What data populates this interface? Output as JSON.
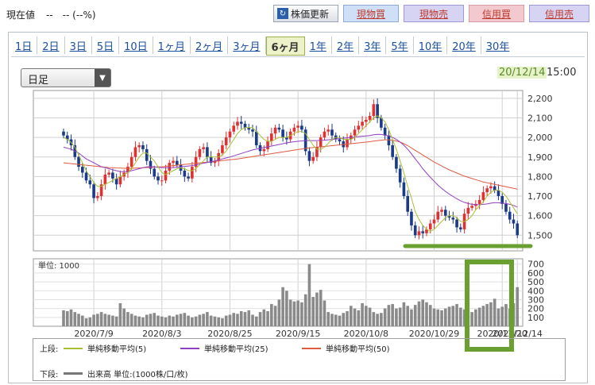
{
  "header": {
    "price_label": "現在値",
    "price_value": "--　-- (--%)",
    "update_label": "株価更新",
    "update_icon": "refresh-icon",
    "buttons": {
      "genbai": "現物買",
      "genuri": "現物売",
      "shinbai": "信用買",
      "shinuri": "信用売"
    }
  },
  "tabs": [
    "1日",
    "2日",
    "3日",
    "5日",
    "10日",
    "1ヶ月",
    "2ヶ月",
    "3ヶ月",
    "6ヶ月",
    "1年",
    "2年",
    "3年",
    "5年",
    "10年",
    "20年",
    "30年"
  ],
  "active_tab": "6ヶ月",
  "select": {
    "value": "日足"
  },
  "datetime": {
    "date": "20/12/14",
    "time": "15:00"
  },
  "legend": {
    "upper_label": "上段:",
    "lower_label": "下段:",
    "ma5": "単純移動平均(5)",
    "ma25": "単純移動平均(25)",
    "ma50": "単純移動平均(50)",
    "volume": "出来高 単位:(1000株/口/枚)"
  },
  "colors": {
    "up": "#e03030",
    "down": "#1a3a8a",
    "ma5": "#a8c030",
    "ma25": "#9040c0",
    "ma50": "#e05a40",
    "volume": "#8a8a8a",
    "highlight": "#6aa030"
  },
  "chart_data": [
    {
      "type": "candlestick",
      "ylim": [
        1420,
        2240
      ],
      "y_ticks": [
        "2,200",
        "2,100",
        "2,000",
        "1,900",
        "1,800",
        "1,700",
        "1,600",
        "1,500"
      ],
      "y_tick_values": [
        2200,
        2100,
        2000,
        1900,
        1800,
        1700,
        1600,
        1500
      ],
      "close": [
        2010,
        1990,
        1960,
        1900,
        1850,
        1820,
        1780,
        1760,
        1690,
        1700,
        1760,
        1810,
        1820,
        1790,
        1760,
        1800,
        1820,
        1850,
        1900,
        1950,
        1960,
        1940,
        1880,
        1840,
        1800,
        1780,
        1780,
        1830,
        1870,
        1880,
        1860,
        1830,
        1800,
        1790,
        1850,
        1900,
        1940,
        1950,
        1900,
        1870,
        1880,
        1920,
        1960,
        2000,
        2030,
        2060,
        2080,
        2070,
        2050,
        2040,
        2030,
        1960,
        1930,
        1940,
        1980,
        2020,
        2050,
        2040,
        2000,
        1990,
        2030,
        2050,
        2060,
        2040,
        1930,
        1880,
        1900,
        1950,
        2000,
        2030,
        2040,
        2010,
        1990,
        1980,
        1950,
        1990,
        2010,
        2040,
        2060,
        2080,
        2090,
        2110,
        2170,
        2100,
        2050,
        2010,
        1960,
        1900,
        1840,
        1770,
        1700,
        1620,
        1550,
        1500,
        1520,
        1510,
        1530,
        1560,
        1580,
        1620,
        1630,
        1600,
        1590,
        1580,
        1540,
        1530,
        1610,
        1640,
        1650,
        1660,
        1680,
        1720,
        1740,
        1750,
        1730,
        1700,
        1660,
        1620,
        1580,
        1560,
        1500
      ],
      "ma5": [
        2000,
        1990,
        1975,
        1950,
        1910,
        1870,
        1830,
        1800,
        1770,
        1750,
        1750,
        1760,
        1770,
        1780,
        1790,
        1800,
        1810,
        1820,
        1840,
        1870,
        1900,
        1920,
        1920,
        1900,
        1880,
        1850,
        1820,
        1810,
        1820,
        1830,
        1840,
        1845,
        1840,
        1830,
        1830,
        1840,
        1860,
        1880,
        1900,
        1900,
        1900,
        1900,
        1910,
        1930,
        1960,
        1990,
        2020,
        2040,
        2050,
        2050,
        2050,
        2030,
        2010,
        1990,
        1980,
        1980,
        1990,
        2000,
        2000,
        2000,
        2010,
        2020,
        2030,
        2030,
        2020,
        1990,
        1960,
        1940,
        1940,
        1950,
        1970,
        1990,
        2000,
        2000,
        1990,
        1990,
        1990,
        2000,
        2020,
        2040,
        2060,
        2080,
        2100,
        2110,
        2100,
        2080,
        2040,
        1990,
        1940,
        1880,
        1820,
        1750,
        1690,
        1620,
        1580,
        1550,
        1530,
        1520,
        1530,
        1550,
        1570,
        1590,
        1600,
        1600,
        1590,
        1570,
        1570,
        1580,
        1600,
        1630,
        1650,
        1670,
        1700,
        1720,
        1730,
        1730,
        1720,
        1700,
        1670,
        1640,
        1610
      ],
      "ma25": [
        1950,
        1945,
        1940,
        1930,
        1920,
        1905,
        1890,
        1880,
        1870,
        1860,
        1850,
        1845,
        1840,
        1835,
        1830,
        1825,
        1825,
        1825,
        1830,
        1835,
        1840,
        1845,
        1850,
        1850,
        1850,
        1848,
        1846,
        1845,
        1845,
        1846,
        1848,
        1850,
        1852,
        1854,
        1856,
        1860,
        1864,
        1868,
        1872,
        1876,
        1880,
        1885,
        1890,
        1895,
        1900,
        1906,
        1912,
        1918,
        1924,
        1930,
        1936,
        1940,
        1944,
        1948,
        1952,
        1956,
        1960,
        1964,
        1968,
        1972,
        1975,
        1978,
        1980,
        1982,
        1984,
        1984,
        1984,
        1984,
        1985,
        1986,
        1988,
        1990,
        1992,
        1994,
        1996,
        1998,
        2000,
        2002,
        2004,
        2006,
        2008,
        2010,
        2014,
        2016,
        2015,
        2012,
        2008,
        2000,
        1990,
        1976,
        1960,
        1940,
        1916,
        1890,
        1866,
        1840,
        1818,
        1796,
        1776,
        1756,
        1740,
        1724,
        1710,
        1698,
        1686,
        1676,
        1668,
        1662,
        1658,
        1656,
        1656,
        1658,
        1660,
        1664,
        1666,
        1666,
        1664,
        1662,
        1658,
        1652,
        1644
      ],
      "ma50": [
        1870,
        1868,
        1866,
        1864,
        1862,
        1860,
        1858,
        1856,
        1854,
        1852,
        1850,
        1848,
        1846,
        1845,
        1844,
        1843,
        1842,
        1842,
        1842,
        1843,
        1844,
        1845,
        1846,
        1847,
        1848,
        1849,
        1850,
        1852,
        1854,
        1856,
        1858,
        1860,
        1862,
        1864,
        1866,
        1868,
        1870,
        1872,
        1874,
        1876,
        1878,
        1880,
        1882,
        1884,
        1886,
        1888,
        1890,
        1893,
        1896,
        1899,
        1902,
        1905,
        1908,
        1911,
        1914,
        1917,
        1920,
        1923,
        1926,
        1929,
        1932,
        1935,
        1938,
        1941,
        1944,
        1946,
        1948,
        1950,
        1952,
        1954,
        1956,
        1958,
        1960,
        1962,
        1964,
        1966,
        1968,
        1970,
        1972,
        1974,
        1976,
        1978,
        1981,
        1984,
        1986,
        1988,
        1988,
        1986,
        1982,
        1976,
        1968,
        1958,
        1946,
        1934,
        1922,
        1910,
        1898,
        1886,
        1874,
        1864,
        1854,
        1844,
        1834,
        1826,
        1818,
        1810,
        1802,
        1796,
        1790,
        1784,
        1778,
        1772,
        1768,
        1764,
        1760,
        1756,
        1752,
        1748,
        1744,
        1740,
        1735
      ]
    },
    {
      "type": "bar",
      "title": "単位: 1000",
      "ylim": [
        0,
        760
      ],
      "y_ticks": [
        "700",
        "600",
        "500",
        "400",
        "300",
        "200",
        "100"
      ],
      "y_tick_values": [
        700,
        600,
        500,
        400,
        300,
        200,
        100
      ],
      "x_tick_labels": [
        "2020/7/9",
        "2020/8/3",
        "2020/8/25",
        "2020/9/15",
        "2020/10/8",
        "2020/10/29",
        "2020/11/20",
        "2020/12/14"
      ],
      "x_tick_index": [
        8,
        26,
        44,
        62,
        80,
        98,
        116,
        120
      ],
      "values": [
        180,
        170,
        190,
        160,
        140,
        120,
        90,
        100,
        130,
        140,
        160,
        140,
        130,
        120,
        110,
        260,
        200,
        160,
        140,
        120,
        110,
        100,
        130,
        140,
        150,
        120,
        110,
        100,
        120,
        110,
        130,
        140,
        150,
        120,
        100,
        110,
        130,
        140,
        160,
        120,
        110,
        100,
        90,
        120,
        130,
        150,
        140,
        170,
        160,
        180,
        130,
        110,
        160,
        190,
        170,
        250,
        230,
        300,
        440,
        400,
        300,
        280,
        290,
        270,
        360,
        700,
        330,
        380,
        410,
        290,
        160,
        140,
        130,
        120,
        150,
        170,
        230,
        200,
        180,
        260,
        230,
        210,
        160,
        140,
        150,
        200,
        240,
        250,
        200,
        210,
        270,
        230,
        190,
        240,
        280,
        300,
        270,
        240,
        200,
        190,
        180,
        200,
        220,
        230,
        250,
        210,
        190,
        170,
        160,
        190,
        210,
        230,
        250,
        270,
        310,
        200,
        220,
        250,
        200,
        260,
        440
      ]
    }
  ]
}
